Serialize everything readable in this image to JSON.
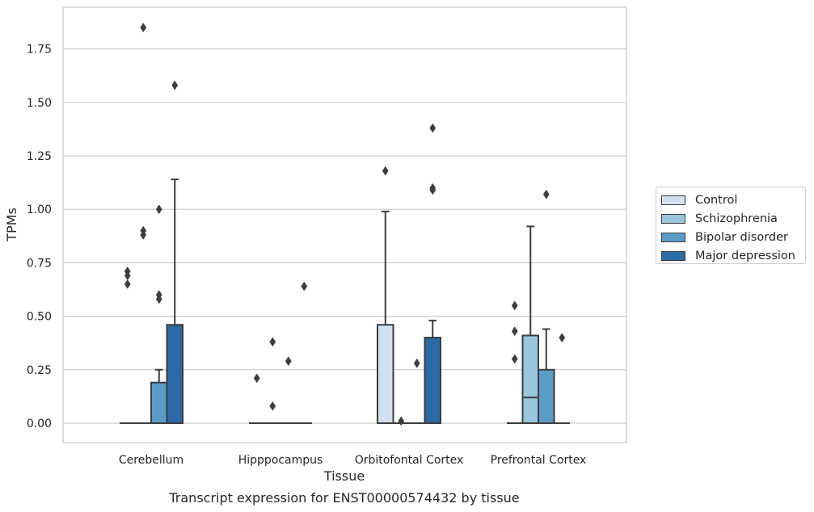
{
  "chart_data": {
    "type": "box",
    "title": "",
    "caption": "Transcript expression for ENST00000574432 by tissue",
    "xlabel": "Tissue",
    "ylabel": "TPMs",
    "ylim": [
      -0.09,
      1.92
    ],
    "yticks": [
      "0.00",
      "0.25",
      "0.50",
      "0.75",
      "1.00",
      "1.25",
      "1.50",
      "1.75"
    ],
    "grid": true,
    "legend_position": "right",
    "categories": [
      "Cerebellum",
      "Hipppocampus",
      "Orbitofontal Cortex",
      "Prefrontal Cortex"
    ],
    "series": [
      {
        "name": "Control",
        "color": "#d0e0f0",
        "boxes": [
          {
            "q1": 0,
            "median": 0,
            "q3": 0,
            "whisker_low": 0,
            "whisker_high": 0,
            "outliers": [
              0.65,
              0.69,
              0.71
            ]
          },
          {
            "q1": 0,
            "median": 0,
            "q3": 0,
            "whisker_low": 0,
            "whisker_high": 0,
            "outliers": [
              0.21
            ]
          },
          {
            "q1": 0,
            "median": 0,
            "q3": 0.46,
            "whisker_low": 0,
            "whisker_high": 0.99,
            "outliers": [
              1.18
            ]
          },
          {
            "q1": 0,
            "median": 0,
            "q3": 0,
            "whisker_low": 0,
            "whisker_high": 0,
            "outliers": [
              0.3,
              0.43,
              0.55
            ]
          }
        ]
      },
      {
        "name": "Schizophrenia",
        "color": "#9ac6de",
        "boxes": [
          {
            "q1": 0,
            "median": 0,
            "q3": 0,
            "whisker_low": 0,
            "whisker_high": 0,
            "outliers": [
              0.88,
              0.9,
              1.85
            ]
          },
          {
            "q1": 0,
            "median": 0,
            "q3": 0,
            "whisker_low": 0,
            "whisker_high": 0,
            "outliers": [
              0.08,
              0.38
            ]
          },
          {
            "q1": 0,
            "median": 0,
            "q3": 0,
            "whisker_low": 0,
            "whisker_high": 0,
            "outliers": [
              0.01
            ]
          },
          {
            "q1": 0,
            "median": 0.12,
            "q3": 0.41,
            "whisker_low": 0,
            "whisker_high": 0.92,
            "outliers": []
          }
        ]
      },
      {
        "name": "Bipolar disorder",
        "color": "#5a9bc8",
        "boxes": [
          {
            "q1": 0,
            "median": 0,
            "q3": 0.19,
            "whisker_low": 0,
            "whisker_high": 0.25,
            "outliers": [
              0.58,
              0.6,
              1.0
            ]
          },
          {
            "q1": 0,
            "median": 0,
            "q3": 0,
            "whisker_low": 0,
            "whisker_high": 0,
            "outliers": [
              0.29
            ]
          },
          {
            "q1": 0,
            "median": 0,
            "q3": 0,
            "whisker_low": 0,
            "whisker_high": 0,
            "outliers": [
              0.28
            ]
          },
          {
            "q1": 0,
            "median": 0,
            "q3": 0.25,
            "whisker_low": 0,
            "whisker_high": 0.44,
            "outliers": [
              1.07
            ]
          }
        ]
      },
      {
        "name": "Major depression",
        "color": "#2c6aa6",
        "boxes": [
          {
            "q1": 0,
            "median": 0,
            "q3": 0.46,
            "whisker_low": 0,
            "whisker_high": 1.14,
            "outliers": [
              1.58
            ]
          },
          {
            "q1": 0,
            "median": 0,
            "q3": 0,
            "whisker_low": 0,
            "whisker_high": 0,
            "outliers": [
              0.64
            ]
          },
          {
            "q1": 0,
            "median": 0,
            "q3": 0.4,
            "whisker_low": 0,
            "whisker_high": 0.48,
            "outliers": [
              1.09,
              1.1,
              1.38
            ]
          },
          {
            "q1": 0,
            "median": 0,
            "q3": 0,
            "whisker_low": 0,
            "whisker_high": 0,
            "outliers": [
              0.4
            ]
          }
        ]
      }
    ]
  }
}
